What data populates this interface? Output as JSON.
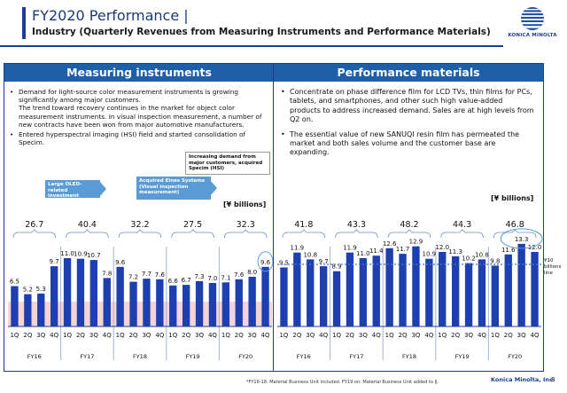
{
  "header": {
    "title": "FY2020 Performance",
    "title_separator": "|",
    "subtitle": "Industry (Quarterly Revenues from Measuring Instruments and Performance Materials)",
    "logo_text": "KONICA MINOLTA"
  },
  "colors": {
    "brand": "#1d3f8c",
    "panel_header": "#1d5fa8",
    "bar": "#1d3faf",
    "highlight_band": "#f7d4d4",
    "callout": "#5b9bd5"
  },
  "left_panel": {
    "heading": "Measuring instruments",
    "bullets": [
      "Demand for light-source color measurement instruments is growing significantly among major customers.",
      "The trend toward recovery continues in the market for object color measurement instruments. In visual inspection measurement, a number of new contracts have been won from major automotive manufacturers.",
      "Entered hyperspectral imaging (HSI) field and started consolidation of Specim."
    ],
    "callouts": [
      "Large OLED-related investment",
      "Acquired Eines Systems (Visual inspection measurement)",
      "Increasing demand from major customers, acquired Specim (HSI)"
    ],
    "unit": "[¥ billions]"
  },
  "right_panel": {
    "heading": "Performance materials",
    "bullets": [
      "Concentrate on phase difference film for LCD TVs, thin films for PCs, tablets, and smartphones, and other such high value-added products to address increased demand. Sales are at high levels from Q2 on.",
      "The essential value of new SANUQI resin film has permeated the market and both sales volume and the customer base are expanding."
    ],
    "unit": "[¥ billions]",
    "reference_label": "¥10 billions line"
  },
  "chart_data": [
    {
      "type": "bar",
      "title": "Measuring instruments",
      "unit": "[¥ billions]",
      "quarters": [
        "1Q",
        "2Q",
        "3Q",
        "4Q",
        "1Q",
        "2Q",
        "3Q",
        "4Q",
        "1Q",
        "2Q",
        "3Q",
        "4Q",
        "1Q",
        "2Q",
        "3Q",
        "4Q",
        "1Q",
        "2Q",
        "3Q",
        "4Q"
      ],
      "fiscal_years": [
        "FY16",
        "FY17",
        "FY18",
        "FY19",
        "FY20"
      ],
      "values": [
        6.5,
        5.2,
        5.3,
        9.7,
        11.0,
        10.9,
        10.7,
        7.8,
        9.6,
        7.2,
        7.7,
        7.6,
        6.6,
        6.7,
        7.3,
        7.0,
        7.1,
        7.6,
        8.0,
        9.6
      ],
      "value_labels": [
        "6.5",
        "5.2",
        "5.3",
        "9.7",
        "11.0",
        "10.9",
        "10.7",
        "7.8",
        "9.6",
        "7.2",
        "7.7",
        "7.6",
        "6.6",
        "6.7",
        "7.3",
        "7.0",
        "7.1",
        "7.6",
        "8.0",
        "9.6"
      ],
      "annual_totals": [
        "26.7",
        "40.4",
        "32.2",
        "27.5",
        "32.3"
      ],
      "band_range": [
        0,
        4
      ]
    },
    {
      "type": "bar",
      "title": "Performance materials",
      "unit": "[¥ billions]",
      "quarters": [
        "1Q",
        "2Q",
        "3Q",
        "4Q",
        "1Q",
        "2Q",
        "3Q",
        "4Q",
        "1Q",
        "2Q",
        "3Q",
        "4Q",
        "1Q",
        "2Q",
        "3Q",
        "4Q",
        "1Q",
        "2Q",
        "3Q",
        "4Q"
      ],
      "fiscal_years": [
        "FY16",
        "FY17",
        "FY18",
        "FY19",
        "FY20"
      ],
      "values": [
        9.5,
        11.9,
        10.8,
        9.7,
        8.9,
        11.9,
        11.0,
        11.4,
        12.6,
        11.7,
        12.9,
        10.9,
        12.0,
        11.3,
        10.2,
        10.8,
        9.8,
        11.6,
        13.3,
        12.0
      ],
      "value_labels": [
        "9.5",
        "11.9",
        "10.8",
        "9.7",
        "8.9",
        "11.9",
        "11.0",
        "11.4",
        "12.6",
        "11.7",
        "12.9",
        "10.9",
        "12.0",
        "11.3",
        "10.2",
        "10.8",
        "9.8",
        "11.6",
        "13.3",
        "12.0"
      ],
      "annual_totals": [
        "41.8",
        "43.3",
        "48.2",
        "44.3",
        "46.8"
      ],
      "reference_line": 10
    }
  ],
  "footer": {
    "footnote": "*FY16-18: Material Business Unit included. FY19 on: Material Business Unit added to IJ.",
    "company": "Konica Minolta, Inc.",
    "page": "8"
  }
}
